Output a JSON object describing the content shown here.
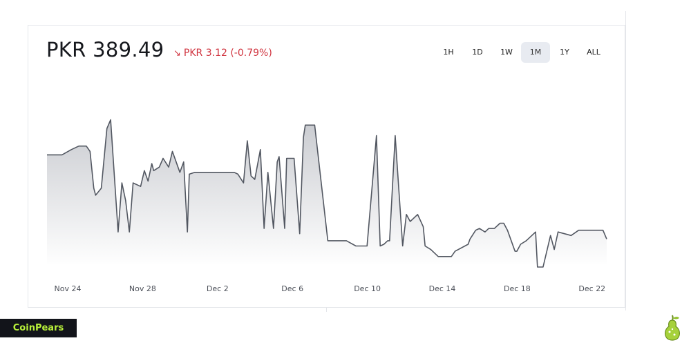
{
  "header": {
    "price": "PKR 389.49",
    "change_arrow": "↘",
    "change": "PKR 3.12 (-0.79%)"
  },
  "ranges": [
    {
      "label": "1H",
      "active": false
    },
    {
      "label": "1D",
      "active": false
    },
    {
      "label": "1W",
      "active": false
    },
    {
      "label": "1M",
      "active": true
    },
    {
      "label": "1Y",
      "active": false
    },
    {
      "label": "ALL",
      "active": false
    }
  ],
  "brand": {
    "name": "CoinPears"
  },
  "colors": {
    "line": "#525761",
    "fill_top": "#c9cbd0",
    "fill_bottom": "#ffffff",
    "change": "#d0343f",
    "brand_text": "#b9f23a"
  },
  "chart_data": {
    "type": "area",
    "x_tick_labels": [
      "Nov 24",
      "Nov 28",
      "Dec 2",
      "Dec 6",
      "Dec 10",
      "Dec 14",
      "Dec 18",
      "Dec 22"
    ],
    "xlim": [
      22.6,
      52.5
    ],
    "ylim": [
      0,
      100
    ],
    "y_axis_visible": false,
    "grid": false,
    "note_units": "x = days from Nov 1, y = relative price level (no y-axis scale shown)",
    "x": [
      22.6,
      23.4,
      23.9,
      24.3,
      24.7,
      24.9,
      25.1,
      25.2,
      25.5,
      25.8,
      26.0,
      26.4,
      26.6,
      26.8,
      27.0,
      27.2,
      27.6,
      27.8,
      28.0,
      28.2,
      28.3,
      28.6,
      28.8,
      29.1,
      29.3,
      29.7,
      29.9,
      30.1,
      30.2,
      30.5,
      31.5,
      32.6,
      32.8,
      33.1,
      33.3,
      33.5,
      33.7,
      34.0,
      34.2,
      34.4,
      34.7,
      34.9,
      35.0,
      35.3,
      35.4,
      35.8,
      36.1,
      36.3,
      36.4,
      36.9,
      37.6,
      38.6,
      39.1,
      39.2,
      39.5,
      39.7,
      40.2,
      40.4,
      40.6,
      40.8,
      40.9,
      41.2,
      41.6,
      41.8,
      42.0,
      42.4,
      42.7,
      42.8,
      43.1,
      43.5,
      44.0,
      44.2,
      44.4,
      45.1,
      45.2,
      45.5,
      45.7,
      46.0,
      46.2,
      46.5,
      46.8,
      47.0,
      47.2,
      47.6,
      47.7,
      47.9,
      48.2,
      48.7,
      48.8,
      49.1,
      49.5,
      49.7,
      49.9,
      50.6,
      51.0,
      51.6,
      52.0,
      52.1,
      52.3,
      52.5
    ],
    "y": [
      64,
      64,
      67,
      69,
      69,
      66,
      45,
      41,
      45,
      79,
      84,
      20,
      48,
      38,
      20,
      48,
      46,
      55,
      49,
      59,
      55,
      57,
      62,
      57,
      66,
      54,
      60,
      20,
      53,
      54,
      54,
      54,
      53,
      48,
      72,
      52,
      50,
      67,
      22,
      54,
      22,
      60,
      63,
      22,
      62,
      62,
      19,
      74,
      81,
      81,
      15,
      15,
      12,
      12,
      12,
      12,
      75,
      12,
      13,
      15,
      15,
      75,
      12,
      30,
      26,
      30,
      23,
      12,
      10,
      6,
      6,
      6,
      9,
      13,
      16,
      21,
      22,
      20,
      22,
      22,
      25,
      25,
      21,
      9,
      9,
      13,
      15,
      20,
      0,
      0,
      18,
      10,
      20,
      18,
      21,
      21,
      21,
      21,
      21,
      16
    ]
  }
}
